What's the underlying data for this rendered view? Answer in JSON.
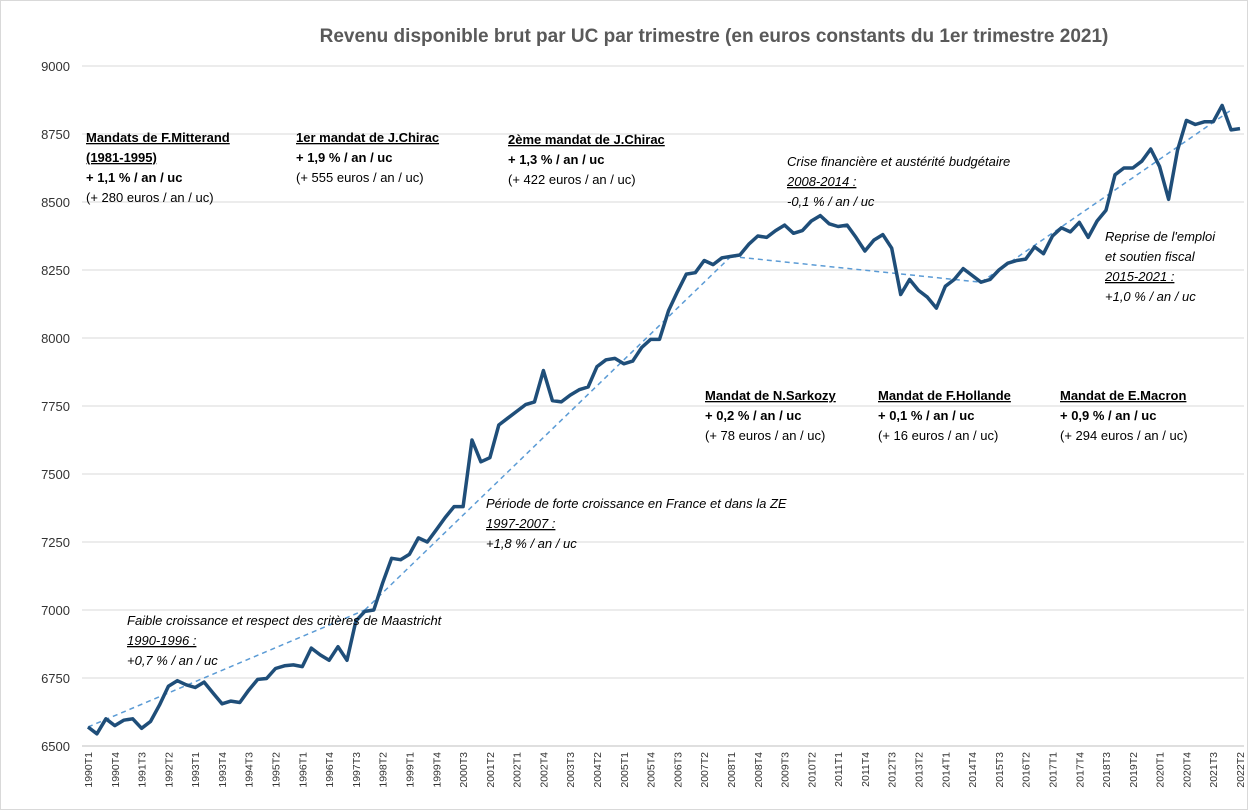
{
  "chart_data": {
    "type": "line",
    "title": "Revenu disponible brut par UC par trimestre (en euros constants du 1er trimestre 2021)",
    "categories": [
      "1990T1",
      null,
      null,
      "1990T4",
      null,
      null,
      "1991T3",
      null,
      null,
      "1992T2",
      null,
      null,
      "1993T1",
      null,
      null,
      "1993T4",
      null,
      null,
      "1994T3",
      null,
      null,
      "1995T2",
      null,
      null,
      "1996T1",
      null,
      null,
      "1996T4",
      null,
      null,
      "1997T3",
      null,
      null,
      "1998T2",
      null,
      null,
      "1999T1",
      null,
      null,
      "1999T4",
      null,
      null,
      "2000T3",
      null,
      null,
      "2001T2",
      null,
      null,
      "2002T1",
      null,
      null,
      "2002T4",
      null,
      null,
      "2003T3",
      null,
      null,
      "2004T2",
      null,
      null,
      "2005T1",
      null,
      null,
      "2005T4",
      null,
      null,
      "2006T3",
      null,
      null,
      "2007T2",
      null,
      null,
      "2008T1",
      null,
      null,
      "2008T4",
      null,
      null,
      "2009T3",
      null,
      null,
      "2010T2",
      null,
      null,
      "2011T1",
      null,
      null,
      "2011T4",
      null,
      null,
      "2012T3",
      null,
      null,
      "2013T2",
      null,
      null,
      "2014T1",
      null,
      null,
      "2014T4",
      null,
      null,
      "2015T3",
      null,
      null,
      "2016T2",
      null,
      null,
      "2017T1",
      null,
      null,
      "2017T4",
      null,
      null,
      "2018T3",
      null,
      null,
      "2019T2",
      null,
      null,
      "2020T1",
      null,
      null,
      "2020T4",
      null,
      null,
      "2021T3",
      null,
      null,
      "2022T2"
    ],
    "series": [
      {
        "color": "#1f4e79",
        "values": [
          6570,
          6545,
          6600,
          6575,
          6595,
          6600,
          6565,
          6590,
          6650,
          6720,
          6740,
          6725,
          6715,
          6735,
          6695,
          6655,
          6665,
          6660,
          6705,
          6745,
          6748,
          6785,
          6795,
          6798,
          6792,
          6860,
          6835,
          6815,
          6865,
          6815,
          6960,
          6995,
          7000,
          7100,
          7190,
          7185,
          7205,
          7265,
          7250,
          7295,
          7340,
          7380,
          7380,
          7625,
          7545,
          7560,
          7680,
          7705,
          7730,
          7755,
          7765,
          7880,
          7770,
          7765,
          7790,
          7810,
          7820,
          7895,
          7920,
          7925,
          7905,
          7915,
          7965,
          7995,
          7995,
          8100,
          8170,
          8235,
          8240,
          8285,
          8270,
          8295,
          8300,
          8305,
          8345,
          8375,
          8370,
          8395,
          8415,
          8385,
          8395,
          8430,
          8450,
          8420,
          8410,
          8415,
          8370,
          8320,
          8360,
          8380,
          8330,
          8160,
          8215,
          8175,
          8150,
          8110,
          8190,
          8215,
          8255,
          8230,
          8205,
          8215,
          8250,
          8275,
          8285,
          8290,
          8335,
          8310,
          8375,
          8405,
          8390,
          8425,
          8370,
          8430,
          8470,
          8600,
          8625,
          8625,
          8650,
          8695,
          8630,
          8510,
          8690,
          8800,
          8785,
          8795,
          8795,
          8855,
          8765,
          8770
        ]
      }
    ],
    "trends": [
      {
        "color": "#5b9bd5",
        "x": [
          0,
          31
        ],
        "values": [
          6570,
          7000
        ]
      },
      {
        "color": "#5b9bd5",
        "x": [
          31,
          72
        ],
        "values": [
          7000,
          8300
        ]
      },
      {
        "color": "#5b9bd5",
        "x": [
          72,
          100
        ],
        "values": [
          8300,
          8205
        ]
      },
      {
        "color": "#5b9bd5",
        "x": [
          100,
          128
        ],
        "values": [
          8205,
          8838
        ]
      }
    ],
    "ylim": [
      6500,
      9000
    ],
    "yticks": [
      6500,
      6750,
      7000,
      7250,
      7500,
      7750,
      8000,
      8250,
      8500,
      8750,
      9000
    ],
    "grid": true,
    "annotations": [
      {
        "lines": [
          "Mandats de F.Mitterand",
          "(1981-1995)",
          "+ 1,1 % / an / uc",
          "(+ 280 euros / an / uc)"
        ]
      },
      {
        "lines": [
          "1er mandat de J.Chirac",
          "+ 1,9 % / an / uc",
          "(+ 555 euros / an / uc)"
        ]
      },
      {
        "lines": [
          "2ème mandat de J.Chirac",
          "+ 1,3 % / an / uc",
          "(+ 422 euros / an / uc)"
        ]
      },
      {
        "lines": [
          "Crise financière et austérité budgétaire",
          "2008-2014 :",
          "-0,1 % / an / uc"
        ]
      },
      {
        "lines": [
          "Reprise de l'emploi",
          "et soutien fiscal",
          "2015-2021 :",
          "+1,0 % / an / uc"
        ]
      },
      {
        "lines": [
          "Mandat de N.Sarkozy",
          "+ 0,2 % / an / uc",
          "(+ 78 euros / an / uc)"
        ]
      },
      {
        "lines": [
          "Mandat de F.Hollande",
          "+ 0,1 % / an / uc",
          "(+ 16 euros / an / uc)"
        ]
      },
      {
        "lines": [
          "Mandat de E.Macron",
          "+ 0,9 % / an / uc",
          "(+ 294 euros / an / uc)"
        ],
        "color": "#c00000"
      },
      {
        "lines": [
          "Période de forte croissance en France et dans la ZE",
          "1997-2007 :",
          "+1,8 % / an / uc"
        ]
      },
      {
        "lines": [
          "Faible croissance et respect des critères de Maastricht",
          "1990-1996 :",
          "+0,7 % / an / uc"
        ]
      }
    ]
  }
}
